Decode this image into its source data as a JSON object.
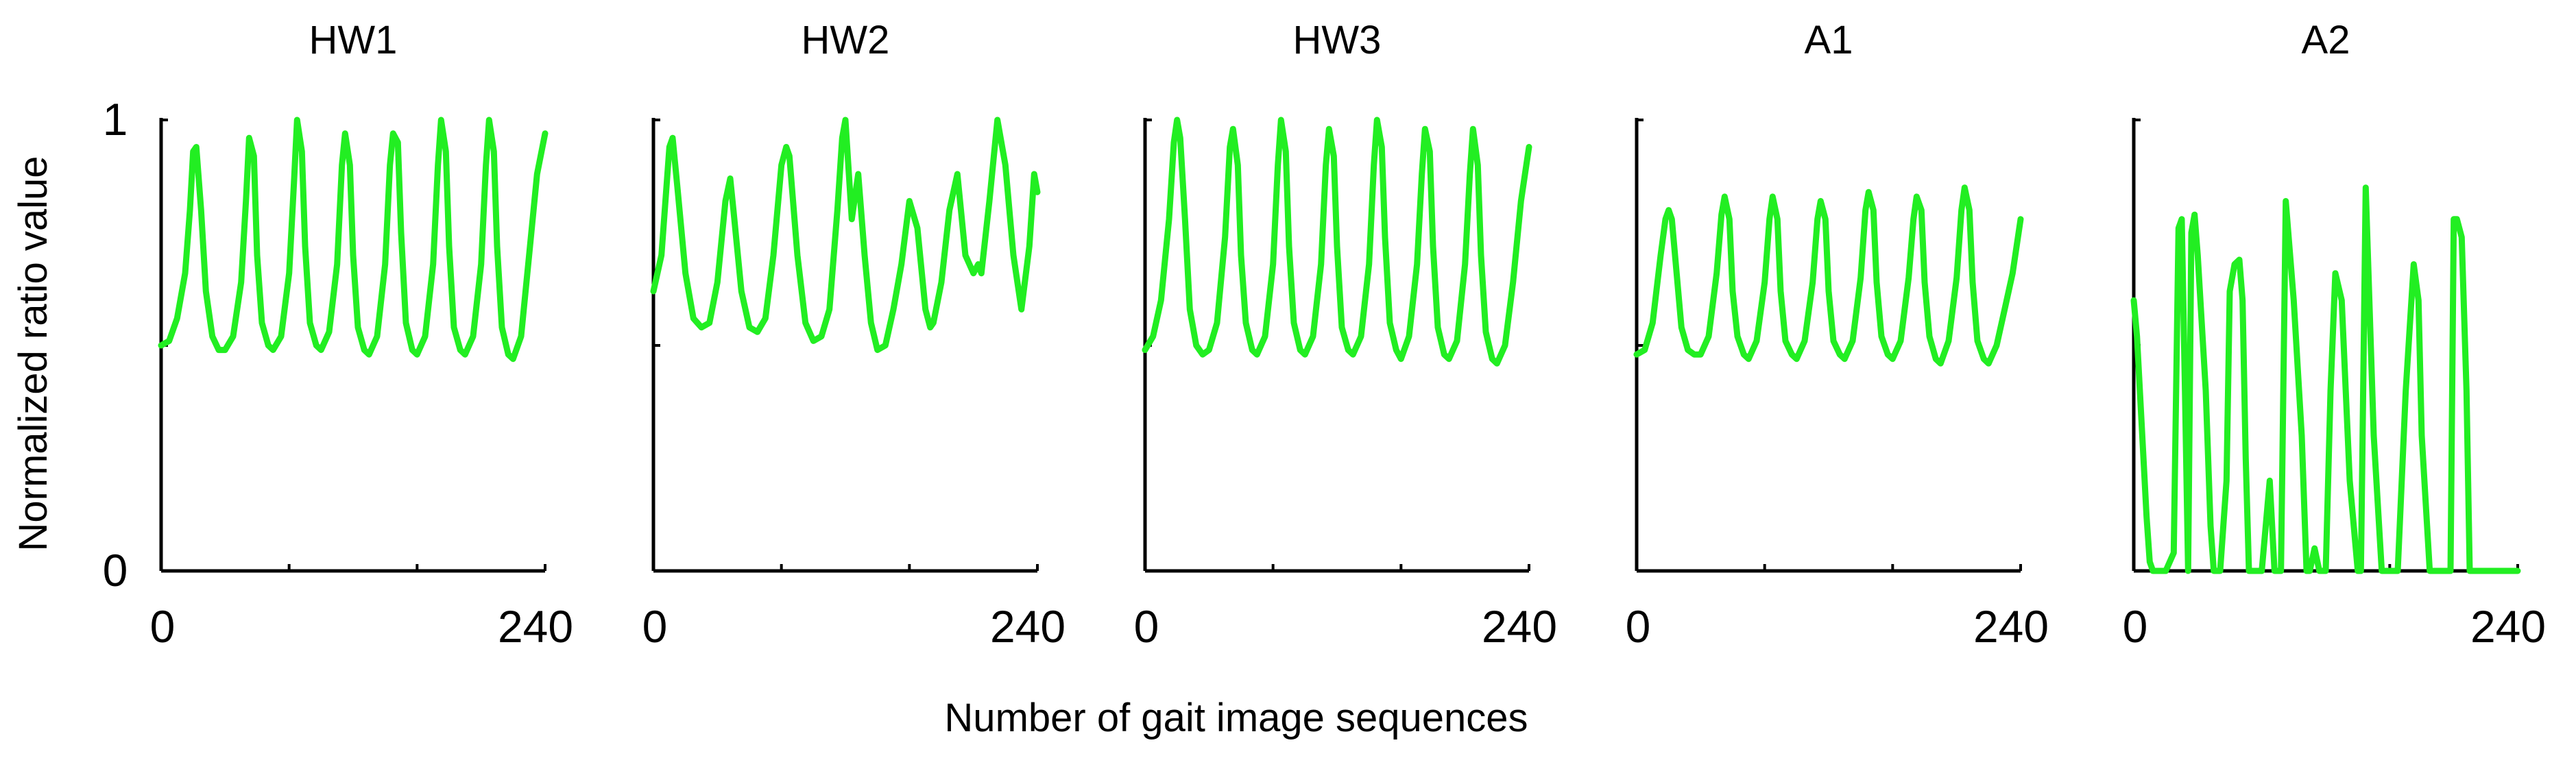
{
  "figure": {
    "xlabel": "Number  of gait image sequences",
    "ylabel": "Normalized  ratio value",
    "y_tick_labels": [
      "0",
      "1"
    ],
    "series_color": "#22ee22",
    "axis_color": "#000000"
  },
  "chart_data": [
    {
      "type": "line",
      "title": "HW1",
      "xlim": [
        0,
        240
      ],
      "ylim": [
        0,
        1
      ],
      "x_tick_labels": [
        "0",
        "240"
      ],
      "x": [
        0,
        5,
        10,
        15,
        18,
        20,
        22,
        25,
        28,
        32,
        36,
        40,
        45,
        50,
        53,
        55,
        58,
        60,
        63,
        67,
        70,
        75,
        80,
        83,
        85,
        88,
        90,
        93,
        97,
        100,
        105,
        110,
        113,
        115,
        118,
        120,
        123,
        127,
        130,
        135,
        140,
        143,
        145,
        148,
        150,
        153,
        157,
        160,
        165,
        170,
        173,
        175,
        178,
        180,
        183,
        187,
        190,
        195,
        200,
        203,
        205,
        208,
        210,
        213,
        217,
        220,
        225,
        230,
        235,
        240
      ],
      "y": [
        0.5,
        0.51,
        0.56,
        0.66,
        0.8,
        0.93,
        0.94,
        0.8,
        0.62,
        0.52,
        0.49,
        0.49,
        0.52,
        0.64,
        0.82,
        0.96,
        0.92,
        0.7,
        0.55,
        0.5,
        0.49,
        0.52,
        0.66,
        0.86,
        1.0,
        0.93,
        0.72,
        0.55,
        0.5,
        0.49,
        0.53,
        0.68,
        0.9,
        0.97,
        0.9,
        0.7,
        0.54,
        0.49,
        0.48,
        0.52,
        0.68,
        0.9,
        0.97,
        0.95,
        0.75,
        0.55,
        0.49,
        0.48,
        0.52,
        0.68,
        0.9,
        1.0,
        0.93,
        0.72,
        0.54,
        0.49,
        0.48,
        0.52,
        0.68,
        0.9,
        1.0,
        0.93,
        0.72,
        0.54,
        0.48,
        0.47,
        0.52,
        0.7,
        0.88,
        0.97
      ]
    },
    {
      "type": "line",
      "title": "HW2",
      "xlim": [
        0,
        240
      ],
      "ylim": [
        0,
        1
      ],
      "x_tick_labels": [
        "0",
        "240"
      ],
      "x": [
        0,
        5,
        10,
        12,
        15,
        20,
        25,
        30,
        35,
        40,
        45,
        48,
        50,
        55,
        60,
        65,
        70,
        75,
        80,
        83,
        85,
        90,
        95,
        100,
        105,
        110,
        115,
        118,
        120,
        124,
        128,
        132,
        136,
        140,
        145,
        150,
        155,
        160,
        165,
        170,
        173,
        175,
        180,
        185,
        190,
        195,
        200,
        203,
        205,
        210,
        215,
        220,
        225,
        230,
        235,
        238,
        240
      ],
      "y": [
        0.62,
        0.7,
        0.94,
        0.96,
        0.85,
        0.66,
        0.56,
        0.54,
        0.55,
        0.64,
        0.82,
        0.87,
        0.8,
        0.62,
        0.54,
        0.53,
        0.56,
        0.7,
        0.9,
        0.94,
        0.92,
        0.7,
        0.55,
        0.51,
        0.52,
        0.58,
        0.8,
        0.96,
        1.0,
        0.78,
        0.88,
        0.7,
        0.55,
        0.49,
        0.5,
        0.58,
        0.68,
        0.82,
        0.76,
        0.58,
        0.54,
        0.55,
        0.64,
        0.8,
        0.88,
        0.7,
        0.66,
        0.68,
        0.66,
        0.82,
        1.0,
        0.9,
        0.7,
        0.58,
        0.72,
        0.88,
        0.84
      ]
    },
    {
      "type": "line",
      "title": "HW3",
      "xlim": [
        0,
        240
      ],
      "ylim": [
        0,
        1
      ],
      "x_tick_labels": [
        "0",
        "240"
      ],
      "x": [
        0,
        5,
        10,
        15,
        18,
        20,
        22,
        25,
        28,
        32,
        36,
        40,
        45,
        50,
        53,
        55,
        58,
        60,
        63,
        67,
        70,
        75,
        80,
        83,
        85,
        88,
        90,
        93,
        97,
        100,
        105,
        110,
        113,
        115,
        118,
        120,
        123,
        127,
        130,
        135,
        140,
        143,
        145,
        148,
        150,
        153,
        157,
        160,
        165,
        170,
        173,
        175,
        178,
        180,
        183,
        187,
        190,
        195,
        200,
        203,
        205,
        208,
        210,
        213,
        217,
        220,
        225,
        230,
        235,
        240
      ],
      "y": [
        0.49,
        0.52,
        0.6,
        0.78,
        0.95,
        1.0,
        0.96,
        0.78,
        0.58,
        0.5,
        0.48,
        0.49,
        0.55,
        0.74,
        0.94,
        0.98,
        0.9,
        0.7,
        0.55,
        0.49,
        0.48,
        0.52,
        0.68,
        0.9,
        1.0,
        0.93,
        0.72,
        0.55,
        0.49,
        0.48,
        0.52,
        0.68,
        0.9,
        0.98,
        0.92,
        0.72,
        0.54,
        0.49,
        0.48,
        0.52,
        0.68,
        0.9,
        1.0,
        0.94,
        0.74,
        0.55,
        0.49,
        0.47,
        0.52,
        0.68,
        0.88,
        0.98,
        0.93,
        0.72,
        0.54,
        0.48,
        0.47,
        0.51,
        0.68,
        0.88,
        0.98,
        0.9,
        0.7,
        0.53,
        0.47,
        0.46,
        0.5,
        0.64,
        0.82,
        0.94
      ]
    },
    {
      "type": "line",
      "title": "A1",
      "xlim": [
        0,
        240
      ],
      "ylim": [
        0,
        1
      ],
      "x_tick_labels": [
        "0",
        "240"
      ],
      "x": [
        0,
        5,
        10,
        15,
        18,
        20,
        22,
        25,
        28,
        32,
        36,
        40,
        45,
        50,
        53,
        55,
        58,
        60,
        63,
        67,
        70,
        75,
        80,
        83,
        85,
        88,
        90,
        93,
        97,
        100,
        105,
        110,
        113,
        115,
        118,
        120,
        123,
        127,
        130,
        135,
        140,
        143,
        145,
        148,
        150,
        153,
        157,
        160,
        165,
        170,
        173,
        175,
        178,
        180,
        183,
        187,
        190,
        195,
        200,
        203,
        205,
        208,
        210,
        213,
        217,
        220,
        225,
        230,
        235,
        240
      ],
      "y": [
        0.48,
        0.49,
        0.55,
        0.7,
        0.78,
        0.8,
        0.78,
        0.66,
        0.54,
        0.49,
        0.48,
        0.48,
        0.52,
        0.66,
        0.79,
        0.83,
        0.78,
        0.62,
        0.52,
        0.48,
        0.47,
        0.51,
        0.64,
        0.78,
        0.83,
        0.78,
        0.62,
        0.51,
        0.48,
        0.47,
        0.51,
        0.64,
        0.78,
        0.82,
        0.78,
        0.62,
        0.51,
        0.48,
        0.47,
        0.51,
        0.65,
        0.8,
        0.84,
        0.8,
        0.64,
        0.52,
        0.48,
        0.47,
        0.51,
        0.65,
        0.78,
        0.83,
        0.8,
        0.64,
        0.52,
        0.47,
        0.46,
        0.51,
        0.65,
        0.8,
        0.85,
        0.8,
        0.64,
        0.51,
        0.47,
        0.46,
        0.5,
        0.58,
        0.66,
        0.78
      ]
    },
    {
      "type": "line",
      "title": "A2",
      "xlim": [
        0,
        240
      ],
      "ylim": [
        0,
        1
      ],
      "x_tick_labels": [
        "0",
        "240"
      ],
      "x": [
        0,
        2,
        5,
        8,
        10,
        12,
        15,
        20,
        25,
        28,
        30,
        32,
        34,
        36,
        38,
        40,
        45,
        48,
        50,
        54,
        58,
        60,
        63,
        66,
        68,
        70,
        72,
        75,
        80,
        85,
        88,
        90,
        92,
        95,
        100,
        105,
        108,
        110,
        113,
        116,
        120,
        123,
        126,
        130,
        135,
        140,
        142,
        145,
        150,
        155,
        160,
        165,
        170,
        175,
        178,
        180,
        185,
        190,
        193,
        195,
        198,
        200,
        202,
        205,
        208,
        210,
        215,
        220,
        225,
        230,
        235,
        240
      ],
      "y": [
        0.6,
        0.52,
        0.32,
        0.12,
        0.02,
        0.0,
        0.0,
        0.0,
        0.04,
        0.76,
        0.78,
        0.4,
        0.0,
        0.75,
        0.79,
        0.7,
        0.4,
        0.1,
        0.0,
        0.0,
        0.2,
        0.62,
        0.68,
        0.69,
        0.6,
        0.25,
        0.0,
        0.0,
        0.0,
        0.2,
        0.0,
        0.0,
        0.0,
        0.82,
        0.6,
        0.3,
        0.0,
        0.0,
        0.05,
        0.0,
        0.0,
        0.4,
        0.66,
        0.6,
        0.2,
        0.0,
        0.0,
        0.85,
        0.3,
        0.0,
        0.0,
        0.0,
        0.4,
        0.68,
        0.6,
        0.3,
        0.0,
        0.0,
        0.0,
        0.0,
        0.0,
        0.78,
        0.78,
        0.74,
        0.4,
        0.0,
        0.0,
        0.0,
        0.0,
        0.0,
        0.0,
        0.0
      ]
    }
  ]
}
